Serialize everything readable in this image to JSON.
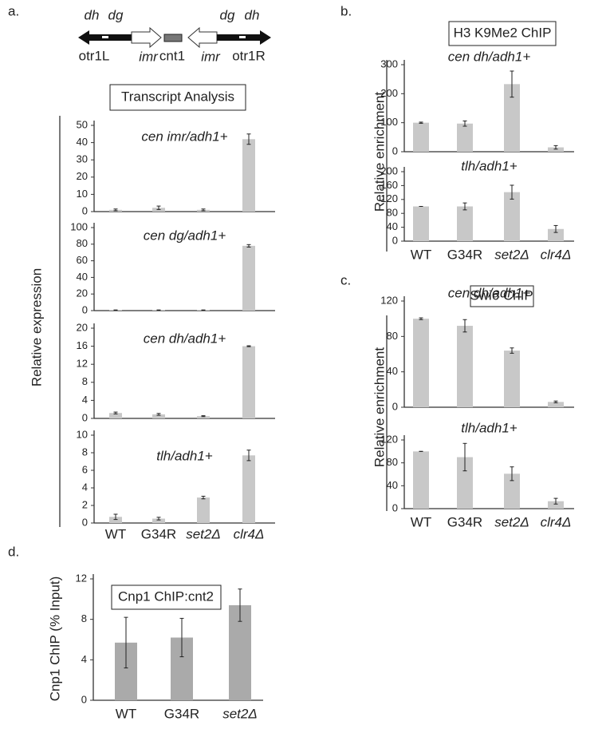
{
  "figure": {
    "panel_labels": [
      "a.",
      "b.",
      "c.",
      "d."
    ],
    "diagram_labels": [
      "dh",
      "dg",
      "otr1L",
      "imr",
      "cnt1",
      "imr",
      "otr1R",
      "dg",
      "dh"
    ],
    "panel_titles": [
      "Transcript Analysis",
      "H3 K9Me2 ChIP",
      "Swi6 ChIP",
      "Cnp1 ChIP:cnt2"
    ],
    "y_labels": [
      "Relative expression",
      "Relative enrichment",
      "Relative enrichment",
      "Cnp1 ChIP (% Input)"
    ]
  },
  "chart_data": [
    {
      "type": "bar",
      "title": "cen imr/adh1+",
      "values": [
        1,
        2.2,
        1,
        42
      ],
      "errors": [
        0.5,
        1,
        0.5,
        3
      ],
      "ylim": [
        0,
        50
      ],
      "yticks": [
        0,
        10,
        20,
        30,
        40,
        50
      ],
      "color": "#c8c8c8"
    },
    {
      "type": "bar",
      "title": "cen dg/adh1+",
      "values": [
        0.5,
        0.5,
        0.5,
        78
      ],
      "errors": [
        0.3,
        0.3,
        0.3,
        1.5
      ],
      "ylim": [
        0,
        100
      ],
      "yticks": [
        0,
        20,
        40,
        60,
        80,
        100
      ],
      "color": "#c8c8c8"
    },
    {
      "type": "bar",
      "title": "cen dh/adh1+",
      "values": [
        1.2,
        0.9,
        0.5,
        16
      ],
      "errors": [
        0.2,
        0.2,
        0.1,
        0.1
      ],
      "ylim": [
        0,
        20
      ],
      "yticks": [
        0,
        4,
        8,
        12,
        16,
        20
      ],
      "color": "#c8c8c8"
    },
    {
      "type": "bar",
      "title": "tlh/adh1+",
      "categories": [
        "WT",
        "G34R",
        "set2Δ",
        "clr4Δ"
      ],
      "values": [
        0.7,
        0.5,
        2.9,
        7.7
      ],
      "errors": [
        0.3,
        0.15,
        0.15,
        0.6
      ],
      "ylim": [
        0,
        10
      ],
      "yticks": [
        0,
        2,
        4,
        6,
        8,
        10
      ],
      "color": "#c8c8c8"
    },
    {
      "type": "bar",
      "title": "cen dh/adh1+",
      "values": [
        100,
        97,
        233,
        15
      ],
      "errors": [
        2,
        9,
        45,
        6
      ],
      "ylim": [
        0,
        300
      ],
      "yticks": [
        0,
        100,
        200,
        300
      ],
      "color": "#c8c8c8"
    },
    {
      "type": "bar",
      "title": "tlh/adh1+",
      "categories": [
        "WT",
        "G34R",
        "set2Δ",
        "clr4Δ"
      ],
      "values": [
        100,
        100,
        141,
        35
      ],
      "errors": [
        0,
        10,
        20,
        10
      ],
      "ylim": [
        0,
        200
      ],
      "yticks": [
        0,
        40,
        80,
        120,
        160,
        200
      ],
      "color": "#c8c8c8"
    },
    {
      "type": "bar",
      "title": "cen dh/adh1+",
      "values": [
        100,
        92,
        64,
        6
      ],
      "errors": [
        1,
        7,
        3,
        1
      ],
      "ylim": [
        0,
        120
      ],
      "yticks": [
        0,
        40,
        80,
        120
      ],
      "color": "#c8c8c8"
    },
    {
      "type": "bar",
      "title": "tlh/adh1+",
      "categories": [
        "WT",
        "G34R",
        "set2Δ",
        "clr4Δ"
      ],
      "values": [
        100,
        90,
        61,
        13
      ],
      "errors": [
        0,
        24,
        12,
        5
      ],
      "ylim": [
        0,
        120
      ],
      "yticks": [
        0,
        40,
        80,
        120
      ],
      "color": "#c8c8c8"
    },
    {
      "type": "bar",
      "categories": [
        "WT",
        "G34R",
        "set2Δ"
      ],
      "values": [
        5.7,
        6.2,
        9.4
      ],
      "errors": [
        2.5,
        1.9,
        1.6
      ],
      "ylim": [
        0,
        12
      ],
      "yticks": [
        0,
        4,
        8,
        12
      ],
      "color": "#aaaaaa"
    }
  ]
}
